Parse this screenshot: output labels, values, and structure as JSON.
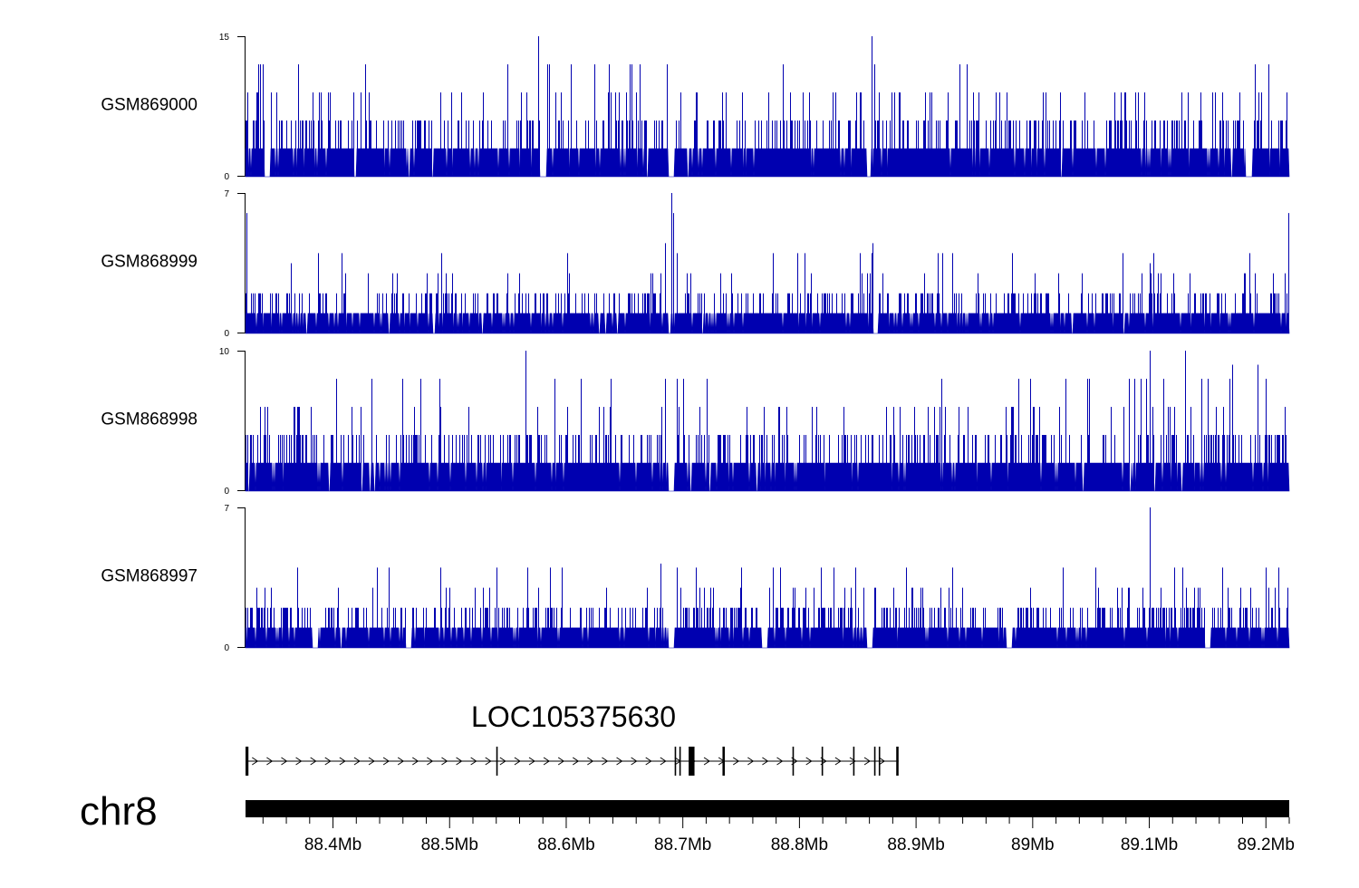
{
  "chart_data": {
    "type": "area",
    "chromosome": "chr8",
    "series_color": "#0000b0",
    "x_range_bp": [
      88325000,
      89220000
    ],
    "tracks": [
      {
        "name": "GSM869000",
        "ylim": [
          0,
          15
        ],
        "tick_labels": [
          "15",
          "0"
        ],
        "base_level": 3,
        "step_levels": [
          3,
          6,
          9,
          12,
          15
        ],
        "seed": 11,
        "spikes": [
          {
            "pos": 88336000,
            "value": 12
          },
          {
            "pos": 88576000,
            "value": 15
          },
          {
            "pos": 88584000,
            "value": 12
          },
          {
            "pos": 88595000,
            "value": 9
          },
          {
            "pos": 88604000,
            "value": 12
          },
          {
            "pos": 88698000,
            "value": 9
          },
          {
            "pos": 88712000,
            "value": 9
          },
          {
            "pos": 88734000,
            "value": 9
          },
          {
            "pos": 88808000,
            "value": 9
          },
          {
            "pos": 88862000,
            "value": 15
          },
          {
            "pos": 88864000,
            "value": 12
          },
          {
            "pos": 89144000,
            "value": 9
          },
          {
            "pos": 89218000,
            "value": 9
          }
        ],
        "dips": [
          88344000,
          88580000,
          88690000,
          88860000,
          89185000
        ]
      },
      {
        "name": "GSM868999",
        "ylim": [
          0,
          7
        ],
        "tick_labels": [
          "7",
          "0"
        ],
        "base_level": 1,
        "step_levels": [
          1,
          2,
          3,
          4,
          5,
          6,
          7
        ],
        "seed": 23,
        "spikes": [
          {
            "pos": 88326000,
            "value": 6
          },
          {
            "pos": 88364000,
            "value": 3.5
          },
          {
            "pos": 88685000,
            "value": 4.5
          },
          {
            "pos": 88690000,
            "value": 7
          },
          {
            "pos": 88692000,
            "value": 6
          },
          {
            "pos": 88863000,
            "value": 4.5
          },
          {
            "pos": 89100000,
            "value": 3.5
          },
          {
            "pos": 89110000,
            "value": 3
          },
          {
            "pos": 89219000,
            "value": 6
          },
          {
            "pos": 89220000,
            "value": 7
          }
        ],
        "dips": [
          88690000,
          88865000
        ]
      },
      {
        "name": "GSM868998",
        "ylim": [
          0,
          10
        ],
        "tick_labels": [
          "10",
          "0"
        ],
        "base_level": 2,
        "step_levels": [
          2,
          4,
          6,
          8,
          10
        ],
        "seed": 37,
        "spikes": [
          {
            "pos": 88565000,
            "value": 10
          },
          {
            "pos": 88590000,
            "value": 8
          },
          {
            "pos": 88700000,
            "value": 8
          },
          {
            "pos": 88922000,
            "value": 8
          },
          {
            "pos": 89028000,
            "value": 8
          },
          {
            "pos": 89100000,
            "value": 10
          },
          {
            "pos": 89131000,
            "value": 10
          },
          {
            "pos": 89171000,
            "value": 9
          },
          {
            "pos": 89193000,
            "value": 9
          }
        ],
        "dips": [
          88690000
        ]
      },
      {
        "name": "GSM868997",
        "ylim": [
          0,
          7
        ],
        "tick_labels": [
          "7",
          "0"
        ],
        "base_level": 1,
        "step_levels": [
          1,
          2,
          3,
          4,
          5,
          6,
          7
        ],
        "seed": 53,
        "spikes": [
          {
            "pos": 88567000,
            "value": 4
          },
          {
            "pos": 88586000,
            "value": 4
          },
          {
            "pos": 88681000,
            "value": 4.2
          },
          {
            "pos": 88698000,
            "value": 3
          },
          {
            "pos": 88829000,
            "value": 4
          },
          {
            "pos": 89076000,
            "value": 3
          },
          {
            "pos": 89100000,
            "value": 7
          },
          {
            "pos": 89121000,
            "value": 4
          }
        ],
        "dips": [
          88385000,
          88465000,
          88690000,
          88770000,
          88860000,
          88980000,
          89150000
        ]
      }
    ],
    "gene": {
      "name": "LOC105375630",
      "start": 88325000,
      "end": 88885000,
      "strand": "+",
      "exons": [
        {
          "start": 88325000,
          "end": 88327500
        },
        {
          "start": 88540000,
          "end": 88541000
        },
        {
          "start": 88693000,
          "end": 88694000
        },
        {
          "start": 88697000,
          "end": 88698000
        },
        {
          "start": 88705000,
          "end": 88710000
        },
        {
          "start": 88734000,
          "end": 88736000
        },
        {
          "start": 88794000,
          "end": 88795000
        },
        {
          "start": 88819000,
          "end": 88820000
        },
        {
          "start": 88846000,
          "end": 88847000
        },
        {
          "start": 88864000,
          "end": 88865000
        },
        {
          "start": 88868000,
          "end": 88869000
        },
        {
          "start": 88883000,
          "end": 88885000
        }
      ]
    },
    "axis_ticks": [
      {
        "pos": 88400000,
        "label": "88.4Mb"
      },
      {
        "pos": 88500000,
        "label": "88.5Mb"
      },
      {
        "pos": 88600000,
        "label": "88.6Mb"
      },
      {
        "pos": 88700000,
        "label": "88.7Mb"
      },
      {
        "pos": 88800000,
        "label": "88.8Mb"
      },
      {
        "pos": 88900000,
        "label": "88.9Mb"
      },
      {
        "pos": 89000000,
        "label": "89Mb"
      },
      {
        "pos": 89100000,
        "label": "89.1Mb"
      },
      {
        "pos": 89200000,
        "label": "89.2Mb"
      }
    ],
    "minor_tick_step_bp": 20000
  }
}
